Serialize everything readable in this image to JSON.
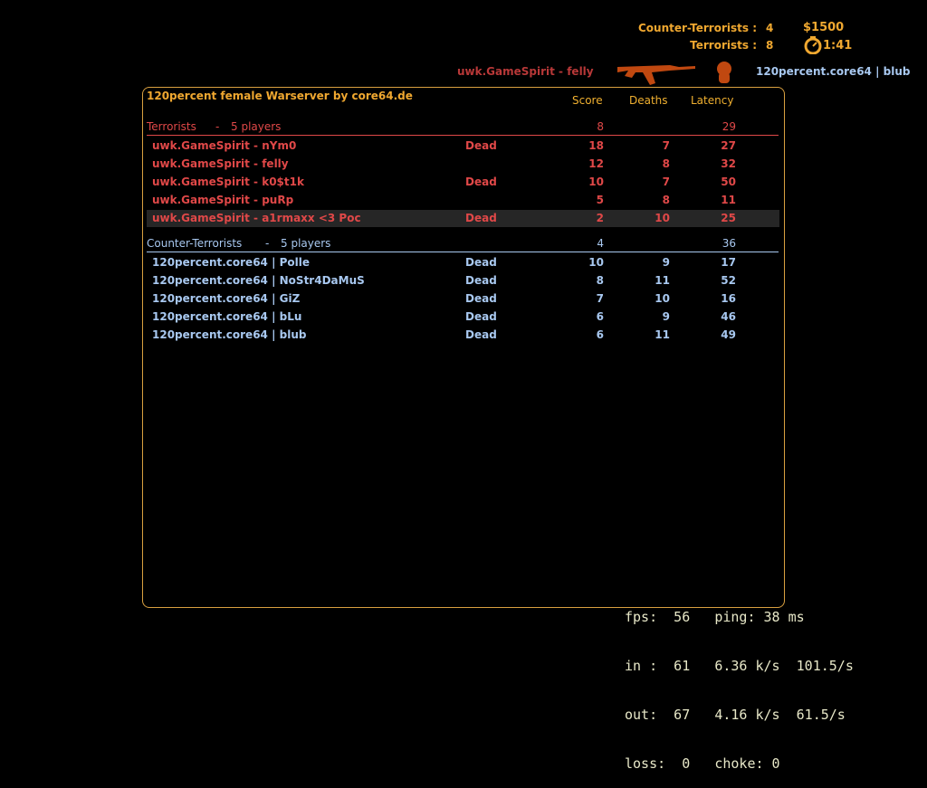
{
  "hud": {
    "ct_label": "Counter-Terrorists :",
    "ct_score": "4",
    "t_label": "Terrorists :",
    "t_score": "8",
    "money": "$1500",
    "timer": "1:41",
    "timer_icon": "stopwatch-icon"
  },
  "killfeed": {
    "killer": "uwk.GameSpirit - felly",
    "victim": "120percent.core64 | blub",
    "weapon_icon": "ak47-icon",
    "headshot_icon": "headshot-icon"
  },
  "scoreboard": {
    "title": "120percent female Warserver by core64.de",
    "columns": {
      "score": "Score",
      "deaths": "Deaths",
      "latency": "Latency"
    },
    "colors": {
      "terrorist": "#e04848",
      "counter_terrorist": "#a8c8f0",
      "accent": "#f0a830"
    },
    "terrorists": {
      "name": "Terrorists",
      "sep": "-",
      "players_label": "5 players",
      "score": "8",
      "latency": "29",
      "rows": [
        {
          "name": "uwk.GameSpirit - nYm0",
          "status": "Dead",
          "score": "18",
          "deaths": "7",
          "latency": "27"
        },
        {
          "name": "uwk.GameSpirit - felly",
          "status": "",
          "score": "12",
          "deaths": "8",
          "latency": "32"
        },
        {
          "name": "uwk.GameSpirit - k0$t1k",
          "status": "Dead",
          "score": "10",
          "deaths": "7",
          "latency": "50"
        },
        {
          "name": "uwk.GameSpirit - puRp",
          "status": "",
          "score": "5",
          "deaths": "8",
          "latency": "11"
        },
        {
          "name": "uwk.GameSpirit - a1rmaxx <3 Poc",
          "status": "Dead",
          "score": "2",
          "deaths": "10",
          "latency": "25"
        }
      ]
    },
    "counter_terrorists": {
      "name": "Counter-Terrorists",
      "sep": "-",
      "players_label": "5 players",
      "score": "4",
      "latency": "36",
      "rows": [
        {
          "name": "120percent.core64 | Polle",
          "status": "Dead",
          "score": "10",
          "deaths": "9",
          "latency": "17"
        },
        {
          "name": "120percent.core64 | NoStr4DaMuS",
          "status": "Dead",
          "score": "8",
          "deaths": "11",
          "latency": "52"
        },
        {
          "name": "120percent.core64 | GiZ",
          "status": "Dead",
          "score": "7",
          "deaths": "10",
          "latency": "16"
        },
        {
          "name": "120percent.core64 | bLu",
          "status": "Dead",
          "score": "6",
          "deaths": "9",
          "latency": "46"
        },
        {
          "name": "120percent.core64 | blub",
          "status": "Dead",
          "score": "6",
          "deaths": "11",
          "latency": "49"
        }
      ]
    }
  },
  "netgraph": {
    "lines": [
      "fps:  56   ping: 38 ms",
      "in :  61   6.36 k/s  101.5/s",
      "out:  67   4.16 k/s  61.5/s",
      "loss:  0   choke: 0"
    ]
  }
}
